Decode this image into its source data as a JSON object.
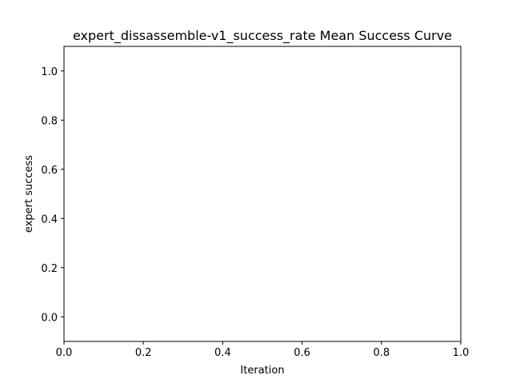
{
  "chart_data": {
    "type": "line",
    "title": "expert_dissassemble-v1_success_rate Mean Success Curve",
    "xlabel": "Iteration",
    "ylabel": "expert success",
    "xlim": [
      0.0,
      1.0
    ],
    "ylim": [
      -0.1,
      1.1
    ],
    "xticks": [
      0.0,
      0.2,
      0.4,
      0.6,
      0.8,
      1.0
    ],
    "xtick_labels": [
      "0.0",
      "0.2",
      "0.4",
      "0.6",
      "0.8",
      "1.0"
    ],
    "yticks": [
      0.0,
      0.2,
      0.4,
      0.6,
      0.8,
      1.0
    ],
    "ytick_labels": [
      "0.0",
      "0.2",
      "0.4",
      "0.6",
      "0.8",
      "1.0"
    ],
    "grid": false,
    "legend": "none",
    "series": []
  }
}
